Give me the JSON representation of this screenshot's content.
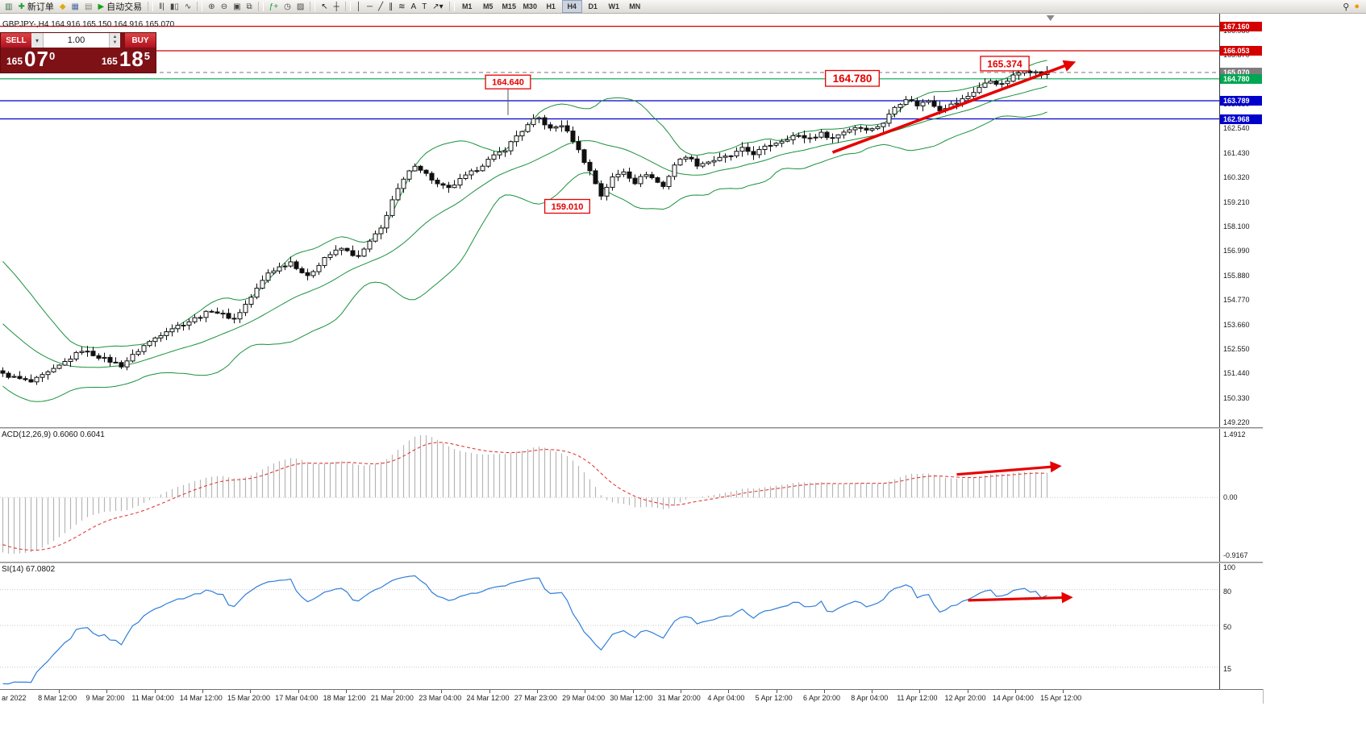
{
  "toolbar": {
    "items": [
      {
        "name": "new-chart-button",
        "glyph": "▥",
        "glyph_color": "#3c6e46"
      },
      {
        "name": "new-order-button",
        "glyph": "✚",
        "glyph_color": "#1f9d2f",
        "label": "新订单"
      },
      {
        "name": "expert-advisors-icon",
        "glyph": "◆",
        "glyph_color": "#dca815"
      },
      {
        "name": "market-watch-icon",
        "glyph": "▦",
        "glyph_color": "#49699c"
      },
      {
        "name": "data-window-icon",
        "glyph": "▤",
        "glyph_color": "#8a8578"
      },
      {
        "name": "autotrading-button",
        "glyph": "▶",
        "glyph_color": "#17a317",
        "label": "自动交易"
      },
      {
        "type": "sep"
      },
      {
        "name": "bar-chart-icon",
        "glyph": "‖|",
        "glyph_color": "#444444"
      },
      {
        "name": "candlestick-chart-icon",
        "glyph": "▮▯",
        "glyph_color": "#444444"
      },
      {
        "name": "line-chart-icon",
        "glyph": "∿",
        "glyph_color": "#444444"
      },
      {
        "type": "sep"
      },
      {
        "name": "zoom-in-button",
        "glyph": "⊕",
        "glyph_color": "#444444"
      },
      {
        "name": "zoom-out-button",
        "glyph": "⊖",
        "glyph_color": "#444444"
      },
      {
        "name": "auto-scroll-icon",
        "glyph": "▣",
        "glyph_color": "#444444"
      },
      {
        "name": "tile-windows-icon",
        "glyph": "⧉",
        "glyph_color": "#444444"
      },
      {
        "type": "sep"
      },
      {
        "name": "indicators-button",
        "glyph": "ƒ+",
        "glyph_color": "#1f9d2f"
      },
      {
        "name": "periods-button",
        "glyph": "◷",
        "glyph_color": "#444444"
      },
      {
        "name": "templates-button",
        "glyph": "▨",
        "glyph_color": "#444444"
      },
      {
        "type": "sep"
      },
      {
        "name": "cursor-tool",
        "glyph": "↖",
        "glyph_color": "#222222"
      },
      {
        "name": "crosshair-tool",
        "glyph": "┼",
        "glyph_color": "#222222"
      },
      {
        "type": "sep"
      },
      {
        "name": "vertical-line-tool",
        "glyph": "│",
        "glyph_color": "#222222"
      },
      {
        "name": "horizontal-line-tool",
        "glyph": "─",
        "glyph_color": "#222222"
      },
      {
        "name": "trendline-tool",
        "glyph": "╱",
        "glyph_color": "#222222"
      },
      {
        "name": "channel-tool",
        "glyph": "∥",
        "glyph_color": "#222222"
      },
      {
        "name": "fibonacci-tool",
        "glyph": "≋",
        "glyph_color": "#222222"
      },
      {
        "name": "text-tool",
        "glyph": "A",
        "glyph_color": "#222222"
      },
      {
        "name": "label-tool",
        "glyph": "T",
        "glyph_color": "#222222"
      },
      {
        "name": "arrows-tool",
        "glyph": "↗▾",
        "glyph_color": "#222222"
      },
      {
        "type": "sep"
      }
    ],
    "timeframes": [
      "M1",
      "M5",
      "M15",
      "M30",
      "H1",
      "H4",
      "D1",
      "W1",
      "MN"
    ],
    "active_timeframe": "H4",
    "right_items": [
      {
        "name": "search-icon",
        "glyph": "⚲",
        "glyph_color": "#333333"
      },
      {
        "name": "community-icon",
        "glyph": "●",
        "glyph_color": "#f59a00"
      }
    ]
  },
  "chart": {
    "symbol_title": "GBPJPY-,H4  164.916 165.150 164.916 165.070",
    "one_click": {
      "sell_label": "SELL",
      "buy_label": "BUY",
      "volume": "1.00",
      "sell_price_big": "165",
      "sell_pips": "07",
      "sell_frac": "0",
      "buy_price_big": "165",
      "buy_pips": "18",
      "buy_frac": "5"
    },
    "hlines": [
      {
        "price": 167.16,
        "badge": "167.160",
        "color": "#d40000",
        "badge_bg": "#d40000",
        "style": "solid"
      },
      {
        "price": 166.053,
        "badge": "166.053",
        "color": "#d40000",
        "badge_bg": "#d40000",
        "style": "solid"
      },
      {
        "price": 165.07,
        "badge": "165.070",
        "color": "#909090",
        "badge_bg": "#7d7d7d",
        "style": "dash"
      },
      {
        "price": 164.78,
        "badge": "164.780",
        "color": "#00a651",
        "badge_bg": "#00a651",
        "style": "solid"
      },
      {
        "price": 163.789,
        "badge": "163.789",
        "color": "#0000cd",
        "badge_bg": "#0000cd",
        "style": "solid"
      },
      {
        "price": 162.968,
        "badge": "162.968",
        "color": "#0000cd",
        "badge_bg": "#0000cd",
        "style": "solid"
      }
    ],
    "annotations": [
      {
        "text": "164.640",
        "bar": 89.5,
        "price": 164.64,
        "font": 11,
        "pointer_drop": 1.5
      },
      {
        "text": "159.010",
        "bar": 100,
        "price": 159.01,
        "font": 11
      },
      {
        "text": "164.780",
        "bar": 150.5,
        "price": 164.8,
        "font": 13.5
      },
      {
        "text": "165.374",
        "bar": 177.5,
        "price": 165.47,
        "font": 12
      }
    ],
    "arrows": {
      "main": {
        "from": [
          147,
          161.45
        ],
        "to": [
          189.5,
          165.5
        ]
      },
      "macd": {
        "from_bar": 169,
        "from_val": 0.5,
        "to_bar": 187,
        "to_val": 0.68
      },
      "rsi": {
        "from_bar": 171,
        "from_val": 71,
        "to_bar": 189,
        "to_val": 73.5
      }
    },
    "price_ticks": [
      "166.980",
      "165.870",
      "164.760",
      "163.650",
      "162.540",
      "161.430",
      "160.320",
      "159.210",
      "158.100",
      "156.990",
      "155.880",
      "154.770",
      "153.660",
      "152.550",
      "151.440",
      "150.330",
      "149.220"
    ],
    "shift_marker_bar": 185.6
  },
  "chart_data": {
    "type": "candlestick",
    "symbol": "GBPJPY",
    "timeframe": "H4",
    "title": "GBPJPY-,H4",
    "ohlc_display": {
      "open": "164.916",
      "high": "165.150",
      "low": "164.916",
      "close": "165.070"
    },
    "bars": 186,
    "price_range_visible": [
      149.01,
      167.73
    ],
    "pre_waypoints": [
      [
        -40,
        157.2
      ],
      [
        -30,
        156.8
      ],
      [
        -20,
        156.3
      ],
      [
        -10,
        153.8
      ],
      [
        -1,
        151.6
      ]
    ],
    "close_waypoints": [
      [
        0,
        151.4
      ],
      [
        5,
        151.05
      ],
      [
        9,
        151.6
      ],
      [
        14,
        152.5
      ],
      [
        17,
        152.2
      ],
      [
        21,
        151.8
      ],
      [
        25,
        152.7
      ],
      [
        29,
        153.4
      ],
      [
        33,
        153.8
      ],
      [
        37,
        154.3
      ],
      [
        41,
        153.9
      ],
      [
        44,
        154.9
      ],
      [
        47,
        156.0
      ],
      [
        51,
        156.5
      ],
      [
        54,
        155.8
      ],
      [
        57,
        156.7
      ],
      [
        60,
        157.1
      ],
      [
        63,
        156.7
      ],
      [
        65,
        157.4
      ],
      [
        67,
        158.0
      ],
      [
        69,
        159.3
      ],
      [
        71,
        160.2
      ],
      [
        73,
        160.9
      ],
      [
        74,
        160.7
      ],
      [
        77,
        160.0
      ],
      [
        79,
        159.8
      ],
      [
        81,
        160.2
      ],
      [
        84,
        160.7
      ],
      [
        86,
        161.1
      ],
      [
        89,
        161.6
      ],
      [
        91,
        162.2
      ],
      [
        94,
        162.9
      ],
      [
        95,
        163.0
      ],
      [
        97,
        162.5
      ],
      [
        99,
        162.7
      ],
      [
        101,
        162.0
      ],
      [
        104,
        160.6
      ],
      [
        106,
        159.5
      ],
      [
        108,
        160.3
      ],
      [
        110,
        160.6
      ],
      [
        112,
        160.1
      ],
      [
        114,
        160.5
      ],
      [
        117,
        159.9
      ],
      [
        119,
        160.9
      ],
      [
        121,
        161.3
      ],
      [
        123,
        160.9
      ],
      [
        126,
        161.1
      ],
      [
        129,
        161.3
      ],
      [
        131,
        161.6
      ],
      [
        133,
        161.4
      ],
      [
        136,
        161.8
      ],
      [
        138,
        162.0
      ],
      [
        140,
        162.2
      ],
      [
        143,
        162.1
      ],
      [
        145,
        162.3
      ],
      [
        147,
        162.1
      ],
      [
        149,
        162.4
      ],
      [
        151,
        162.6
      ],
      [
        154,
        162.5
      ],
      [
        156,
        162.8
      ],
      [
        158,
        163.5
      ],
      [
        160,
        163.9
      ],
      [
        162,
        163.6
      ],
      [
        164,
        163.8
      ],
      [
        166,
        163.4
      ],
      [
        169,
        163.7
      ],
      [
        171,
        164.0
      ],
      [
        173,
        164.4
      ],
      [
        175,
        164.7
      ],
      [
        177,
        164.5
      ],
      [
        179,
        164.9
      ],
      [
        181,
        165.2
      ],
      [
        184,
        165.0
      ],
      [
        185,
        165.07
      ]
    ],
    "indicators": {
      "bollinger": {
        "period": 20,
        "deviation": 2,
        "color": "#19913c"
      },
      "macd": {
        "fast": 12,
        "slow": 26,
        "signal": 9,
        "display_values": "0.6060 0.6041",
        "scale_max": 1.4912,
        "scale_min": -0.9167
      },
      "rsi": {
        "period": 14,
        "display_value": "67.0802",
        "levels": [
          80,
          50,
          15
        ]
      }
    },
    "key_levels": {
      "resistance": [
        167.16,
        166.053
      ],
      "support": [
        164.78,
        163.789,
        162.968
      ],
      "labels": [
        164.64,
        164.78,
        165.374,
        159.01
      ]
    }
  },
  "macd_panel": {
    "label": "ACD(12,26,9) 0.6060 0.6041",
    "ticks": {
      "top": "1.4912",
      "zero": "0.00",
      "bottom": "-0.9167"
    }
  },
  "rsi_panel": {
    "label": "SI(14) 67.0802",
    "ticks": [
      "100",
      "80",
      "50",
      "15"
    ],
    "levels": [
      80,
      50,
      15
    ]
  },
  "time_axis": {
    "labels": [
      "ar 2022",
      "8 Mar 12:00",
      "9 Mar 20:00",
      "11 Mar 04:00",
      "14 Mar 12:00",
      "15 Mar 20:00",
      "17 Mar 04:00",
      "18 Mar 12:00",
      "21 Mar 20:00",
      "23 Mar 04:00",
      "24 Mar 12:00",
      "27 Mar 23:00",
      "29 Mar 04:00",
      "30 Mar 12:00",
      "31 Mar 20:00",
      "4 Apr 04:00",
      "5 Apr 12:00",
      "6 Apr 20:00",
      "8 Apr 04:00",
      "11 Apr 12:00",
      "12 Apr 20:00",
      "14 Apr 04:00",
      "15 Apr 12:00"
    ]
  },
  "colors": {
    "resistance_line": "#d40000",
    "support_green": "#00a651",
    "support_blue": "#0000cd",
    "bollinger": "#19913c",
    "macd_histogram": "#b6b6b6",
    "macd_signal": "#e03a3a",
    "rsi_line": "#2f7ed8",
    "trend_arrow": "#e60000"
  }
}
